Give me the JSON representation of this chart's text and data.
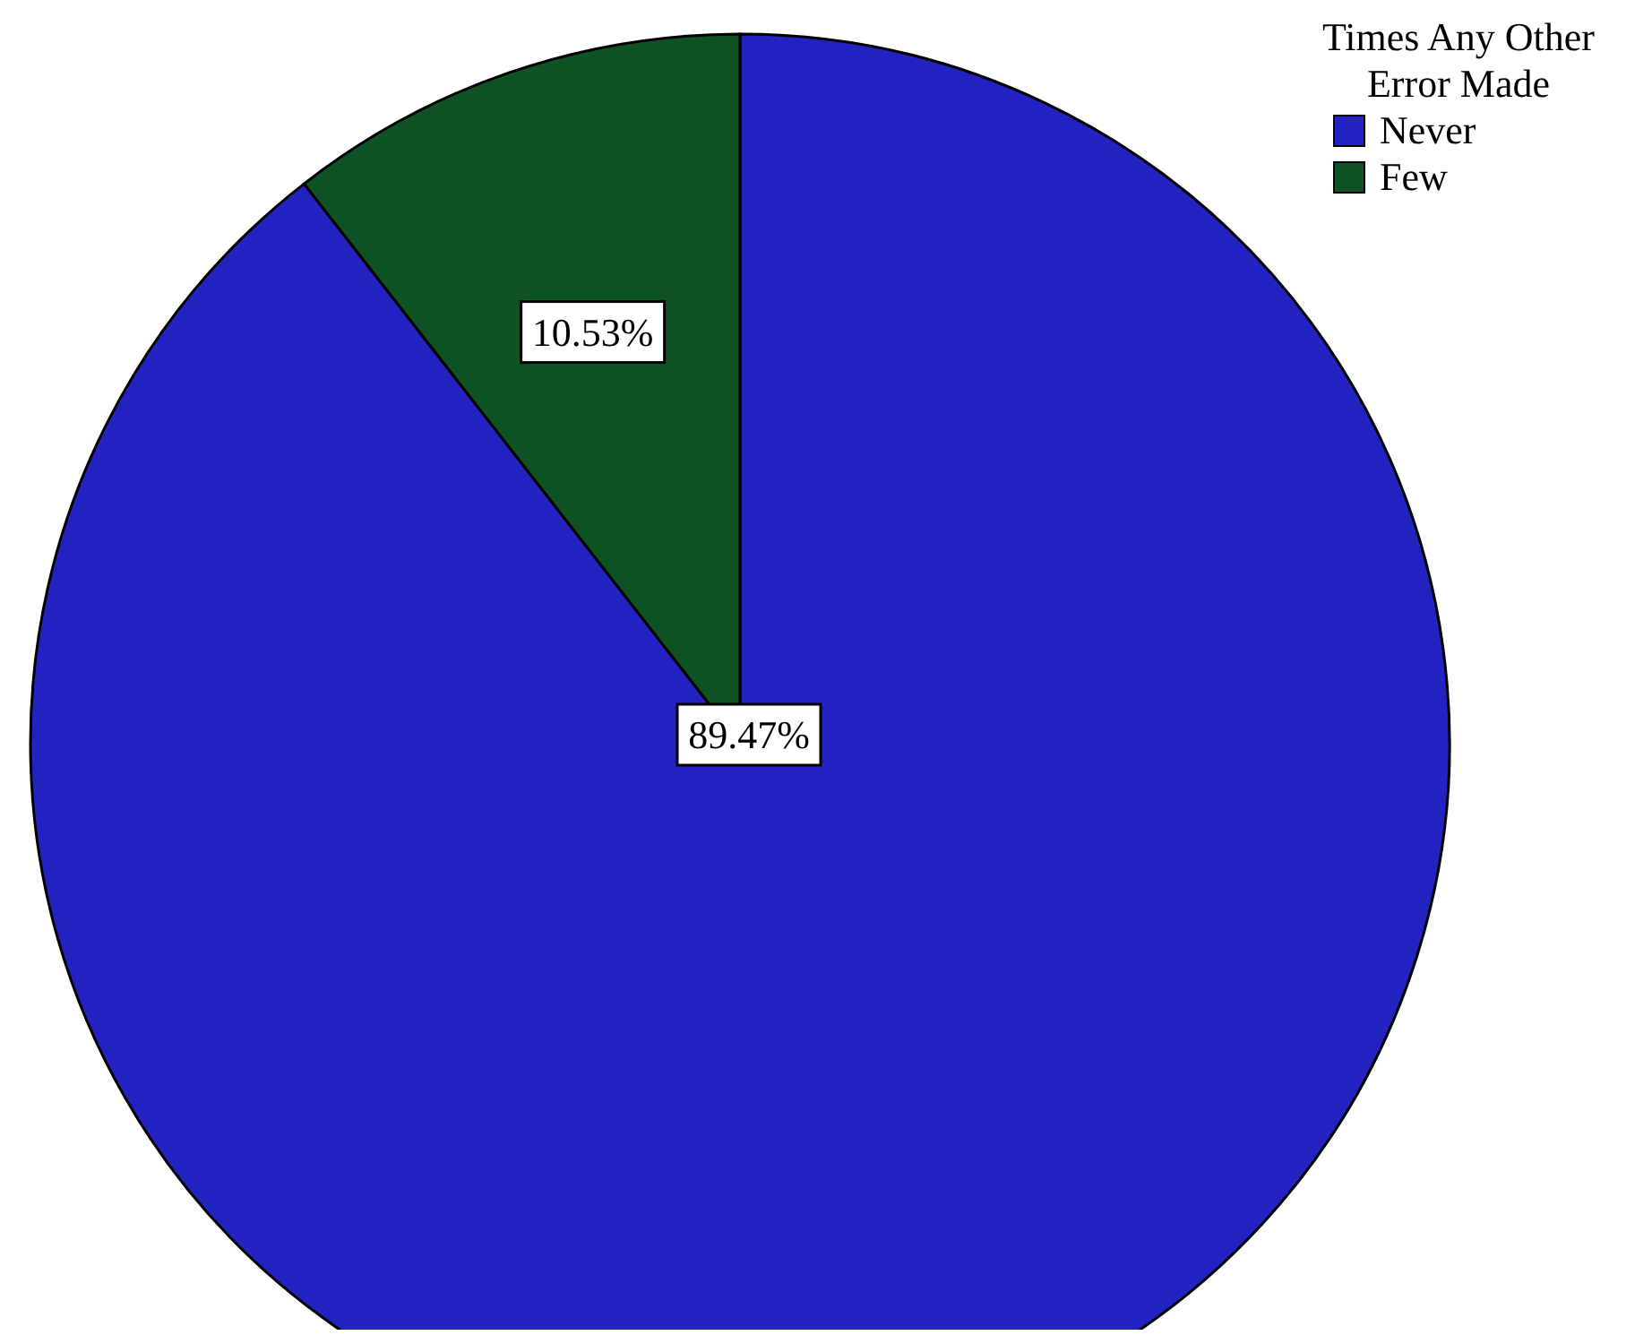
{
  "chart_data": {
    "type": "pie",
    "legend_title": "Times Any Other Error Made",
    "categories": [
      "Never",
      "Few"
    ],
    "values": [
      89.47,
      10.53
    ],
    "colors": [
      "#2323c2",
      "#0f5224"
    ],
    "value_labels": [
      "89.47%",
      "10.53%"
    ],
    "legend": "top right"
  }
}
